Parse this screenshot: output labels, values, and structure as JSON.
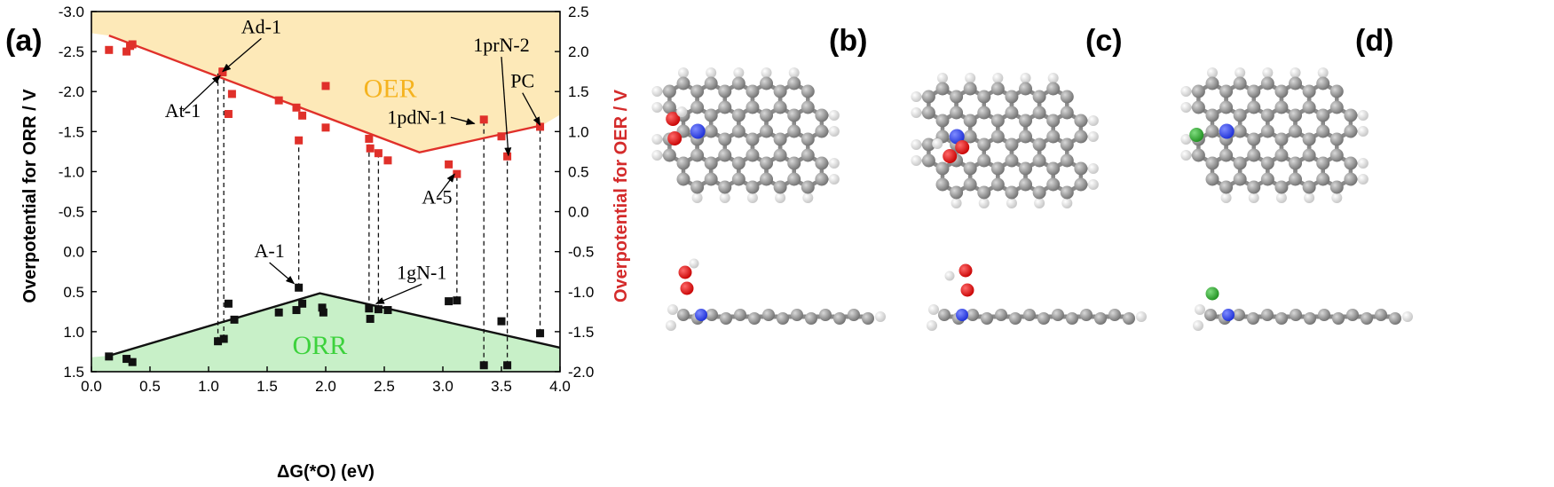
{
  "panels": {
    "a": "(a)",
    "b": "(b)",
    "c": "(c)",
    "d": "(d)"
  },
  "chart_data": {
    "type": "scatter",
    "title": "",
    "xlabel": "ΔG(*O)  (eV)",
    "ylabel_left": "Overpotential for ORR / V",
    "ylabel_right": "Overpotential for OER / V",
    "xlim": [
      0.0,
      4.0
    ],
    "ylim_left": [
      1.5,
      -3.0
    ],
    "ylim_right": [
      -2.0,
      2.5
    ],
    "x_ticks": [
      "0.0",
      "0.5",
      "1.0",
      "1.5",
      "2.0",
      "2.5",
      "3.0",
      "3.5",
      "4.0"
    ],
    "y_ticks_left": [
      "-3.0",
      "-2.5",
      "-2.0",
      "-1.5",
      "-1.0",
      "-0.5",
      "0.0",
      "0.5",
      "1.0",
      "1.5"
    ],
    "y_ticks_right": [
      "2.5",
      "2.0",
      "1.5",
      "1.0",
      "0.5",
      "0.0",
      "-0.5",
      "-1.0",
      "-1.5",
      "-2.0"
    ],
    "colors": {
      "oer": "#e0302a",
      "orr": "#111111",
      "oer_fill": "#fde9b8",
      "orr_fill": "#c8f0c8",
      "oer_label": "#f5b31f",
      "orr_label": "#3cd23c",
      "right_axis": "#d42b2b"
    },
    "regions": {
      "oer": "OER",
      "orr": "ORR"
    },
    "oer_line": [
      [
        0.15,
        2.2
      ],
      [
        2.8,
        0.74
      ],
      [
        3.85,
        1.08
      ]
    ],
    "orr_line": [
      [
        0.15,
        1.3
      ],
      [
        1.95,
        0.52
      ],
      [
        4.0,
        1.2
      ]
    ],
    "oer_points": [
      [
        0.15,
        2.02
      ],
      [
        0.3,
        2.0
      ],
      [
        0.33,
        2.07
      ],
      [
        0.35,
        2.09
      ],
      [
        1.12,
        1.75
      ],
      [
        1.12,
        1.74
      ],
      [
        1.2,
        1.47
      ],
      [
        1.17,
        1.22
      ],
      [
        1.6,
        1.39
      ],
      [
        1.75,
        1.3
      ],
      [
        1.8,
        1.2
      ],
      [
        1.77,
        0.89
      ],
      [
        2.0,
        1.57
      ],
      [
        2.0,
        1.05
      ],
      [
        2.37,
        0.91
      ],
      [
        2.38,
        0.79
      ],
      [
        2.45,
        0.73
      ],
      [
        2.53,
        0.64
      ],
      [
        3.05,
        0.59
      ],
      [
        3.12,
        0.47
      ],
      [
        3.35,
        1.15
      ],
      [
        3.5,
        0.94
      ],
      [
        3.55,
        0.69
      ],
      [
        3.83,
        1.06
      ]
    ],
    "orr_points": [
      [
        0.15,
        1.31
      ],
      [
        0.3,
        1.34
      ],
      [
        0.35,
        1.38
      ],
      [
        1.08,
        1.12
      ],
      [
        1.13,
        1.09
      ],
      [
        1.17,
        0.65
      ],
      [
        1.22,
        0.85
      ],
      [
        1.6,
        0.76
      ],
      [
        1.75,
        0.73
      ],
      [
        1.77,
        0.45
      ],
      [
        1.8,
        0.65
      ],
      [
        1.97,
        0.7
      ],
      [
        1.98,
        0.76
      ],
      [
        2.37,
        0.71
      ],
      [
        2.38,
        0.84
      ],
      [
        2.45,
        0.72
      ],
      [
        2.53,
        0.73
      ],
      [
        3.05,
        0.62
      ],
      [
        3.12,
        0.61
      ],
      [
        3.35,
        1.42
      ],
      [
        3.5,
        0.87
      ],
      [
        3.55,
        1.42
      ],
      [
        3.83,
        1.02
      ]
    ],
    "dashed_links": [
      [
        1.08,
        1.12,
        1.73
      ],
      [
        1.13,
        1.09,
        1.74
      ],
      [
        1.77,
        0.45,
        0.89
      ],
      [
        2.37,
        0.71,
        0.91
      ],
      [
        2.45,
        0.72,
        0.73
      ],
      [
        3.12,
        0.61,
        0.47
      ],
      [
        3.35,
        1.42,
        1.15
      ],
      [
        3.55,
        1.42,
        0.69
      ],
      [
        3.83,
        1.02,
        1.06
      ]
    ],
    "annotations": [
      {
        "text": "Ad-1",
        "x": 1.45,
        "y_left": -2.73,
        "ax": 1.12,
        "ay_left": -2.25,
        "arrow": true
      },
      {
        "text": "At-1",
        "x": 0.78,
        "y_left": -1.68,
        "ax": 1.1,
        "ay_left": -2.2,
        "arrow": true
      },
      {
        "text": "1prN-2",
        "x": 3.5,
        "y_left": -2.5,
        "ax": 3.56,
        "ay_left": -1.2,
        "arrow": true
      },
      {
        "text": "PC",
        "x": 3.68,
        "y_left": -2.05,
        "ax": 3.83,
        "ay_left": -1.58,
        "arrow": true
      },
      {
        "text": "1pdN-1",
        "x": 2.78,
        "y_left": -1.6,
        "ax": 3.27,
        "ay_left": -1.6,
        "arrow": true
      },
      {
        "text": "A-5",
        "x": 2.95,
        "y_left": -0.6,
        "ax": 3.1,
        "ay_left": -0.97,
        "arrow": true
      },
      {
        "text": "A-1",
        "x": 1.52,
        "y_left": 0.07,
        "ax": 1.73,
        "ay_left": 0.4,
        "arrow": true
      },
      {
        "text": "1gN-1",
        "x": 2.82,
        "y_left": 0.34,
        "ax": 2.43,
        "ay_left": 0.65,
        "arrow": true
      }
    ]
  }
}
